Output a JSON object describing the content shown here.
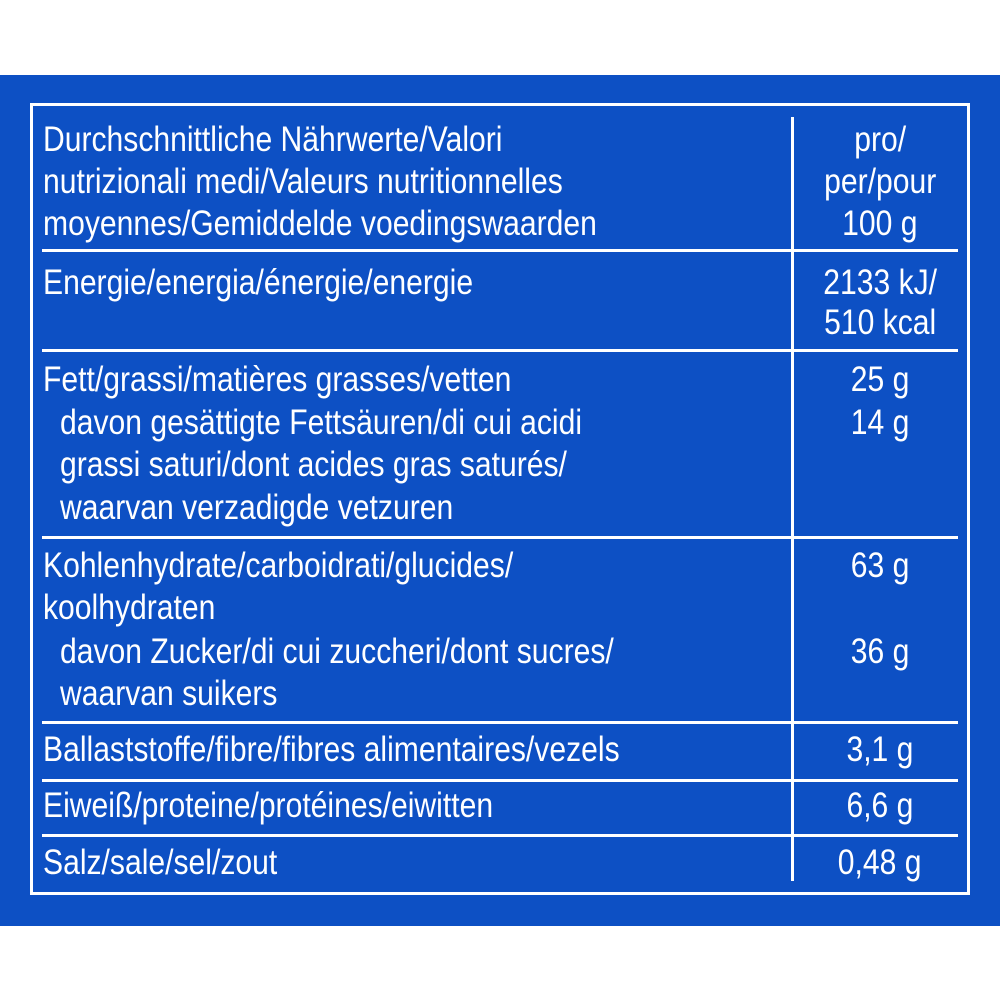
{
  "colors": {
    "background": "#0d50c4",
    "text": "#ffffff"
  },
  "header": {
    "label_lines": [
      "Durchschnittliche Nährwerte/Valori",
      "nutrizionali medi/Valeurs nutritionnelles",
      "moyennes/Gemiddelde voedingswaarden"
    ],
    "unit_lines": [
      "pro/",
      "per/pour",
      "100 g"
    ]
  },
  "rows": [
    {
      "label_lines": [
        "Energie/energia/énergie/energie"
      ],
      "value_lines": [
        "2133 kJ/",
        "510 kcal"
      ]
    },
    {
      "label_lines": [
        "Fett/grassi/matières grasses/vetten"
      ],
      "value_lines": [
        "25 g"
      ],
      "sub": {
        "label_lines": [
          "davon gesättigte Fettsäuren/di cui acidi",
          "grassi saturi/dont acides gras saturés/",
          "waarvan verzadigde vetzuren"
        ],
        "value": "14 g"
      }
    },
    {
      "label_lines": [
        "Kohlenhydrate/carboidrati/glucides/",
        "koolhydraten"
      ],
      "value_lines": [
        "63 g"
      ],
      "sub": {
        "label_lines": [
          "davon Zucker/di cui zuccheri/dont sucres/",
          "waarvan suikers"
        ],
        "value": "36 g"
      }
    },
    {
      "label_lines": [
        "Ballaststoffe/fibre/fibres alimentaires/vezels"
      ],
      "value_lines": [
        "3,1 g"
      ]
    },
    {
      "label_lines": [
        "Eiweiß/proteine/protéines/eiwitten"
      ],
      "value_lines": [
        "6,6 g"
      ]
    },
    {
      "label_lines": [
        "Salz/sale/sel/zout"
      ],
      "value_lines": [
        "0,48 g"
      ]
    }
  ]
}
